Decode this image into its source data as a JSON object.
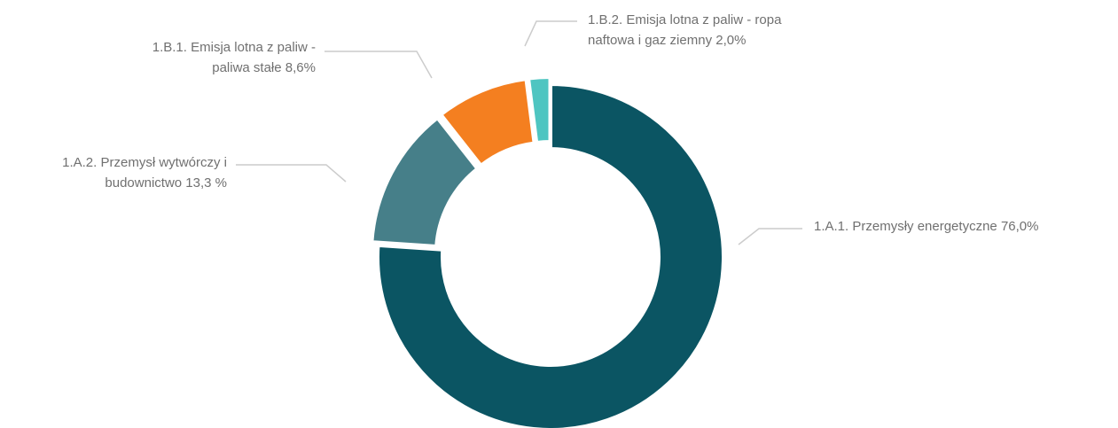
{
  "chart_data": {
    "type": "donut",
    "categories": [
      "1.A.1. Przemysły energetyczne",
      "1.A.2. Przemysł wytwórczy i budownictwo",
      "1.B.1. Emisja lotna z paliw - paliwa stałe",
      "1.B.2. Emisja lotna z paliw - ropa naftowa i gaz ziemny"
    ],
    "values": [
      76.0,
      13.3,
      8.6,
      2.0
    ],
    "value_labels": [
      "76,0%",
      "13,3 %",
      "8,6%",
      "2,0%"
    ],
    "colors": [
      "#0b5563",
      "#467f89",
      "#f47f20",
      "#4ec5c1"
    ]
  }
}
